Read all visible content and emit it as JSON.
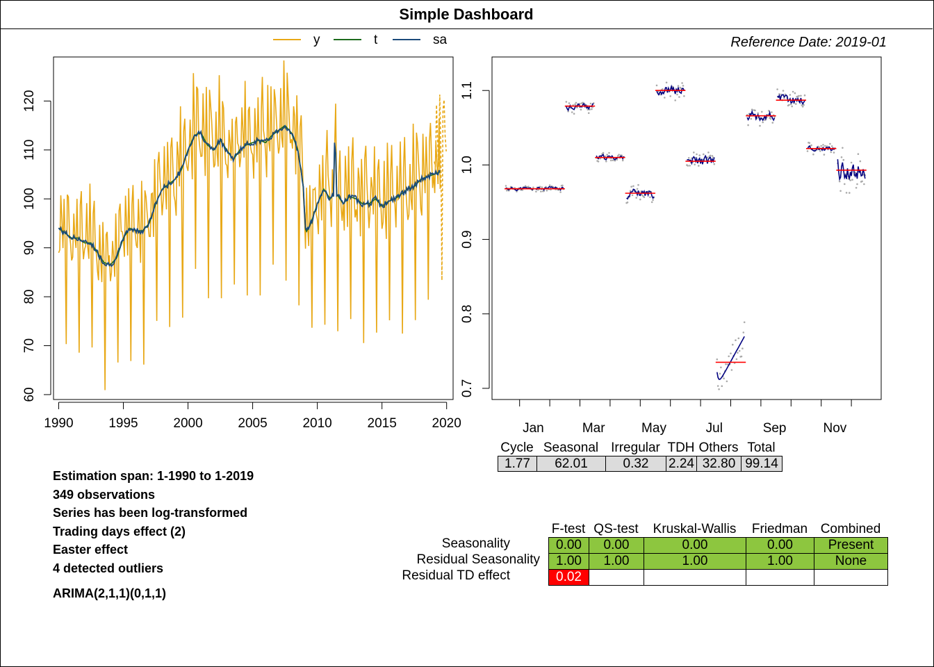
{
  "page_title": "Simple Dashboard",
  "reference_date": "Reference Date: 2019-01",
  "colors": {
    "y": "#E8A816",
    "t": "#1C6B1C",
    "sa": "#1B4A7A",
    "monthly": "#000080",
    "mean": "#FF0000",
    "dots": "#AAAAAA",
    "green": "#8DC63F",
    "red": "#FF0000",
    "gray": "#DCDCDC"
  },
  "chart_data": [
    {
      "type": "line",
      "legend": [
        "y",
        "t",
        "sa"
      ],
      "legend_placement": "top",
      "x_ticks": [
        "1990",
        "1995",
        "2000",
        "2005",
        "2010",
        "2015",
        "2020"
      ],
      "y_ticks": [
        "60",
        "70",
        "80",
        "90",
        "100",
        "110",
        "120"
      ],
      "xlim": [
        1989.6,
        2020.5
      ],
      "ylim": [
        59,
        129
      ],
      "series": [
        {
          "name": "sa",
          "x": [
            1990.0,
            1990.5,
            1991.0,
            1991.5,
            1992.0,
            1992.5,
            1993.0,
            1993.5,
            1994.0,
            1994.5,
            1995.0,
            1995.5,
            1996.0,
            1996.5,
            1997.0,
            1997.5,
            1998.0,
            1998.5,
            1999.0,
            1999.5,
            2000.0,
            2000.5,
            2001.0,
            2001.5,
            2002.0,
            2002.5,
            2003.0,
            2003.5,
            2004.0,
            2004.5,
            2005.0,
            2005.5,
            2006.0,
            2006.5,
            2007.0,
            2007.5,
            2008.0,
            2008.5,
            2008.9,
            2009.1,
            2009.5,
            2010.0,
            2010.5,
            2011.0,
            2011.3,
            2011.35,
            2011.5,
            2012.0,
            2012.5,
            2013.0,
            2013.5,
            2014.0,
            2014.5,
            2015.0,
            2015.5,
            2016.0,
            2016.5,
            2017.0,
            2017.5,
            2018.0,
            2018.5,
            2019.0,
            2019.5
          ],
          "y": [
            94,
            93,
            92,
            92,
            91,
            91,
            89,
            87,
            86.5,
            88,
            92,
            94,
            93.5,
            93.5,
            95,
            99,
            102,
            103,
            104,
            106,
            110,
            113,
            113.5,
            111,
            110,
            112,
            110,
            108,
            110,
            111,
            111.5,
            112,
            111.5,
            113,
            114,
            115,
            113.5,
            110,
            103,
            93,
            95,
            99,
            102,
            100,
            101,
            116,
            101,
            99,
            100.5,
            100,
            99,
            99,
            100,
            98.5,
            99.5,
            100,
            101,
            102,
            102.5,
            104,
            104.5,
            105,
            105.5
          ]
        }
      ]
    },
    {
      "type": "line",
      "title": "",
      "x_ticks": [
        "Jan",
        "Mar",
        "May",
        "Jul",
        "Sep",
        "Nov"
      ],
      "y_ticks": [
        "0.7",
        "0.8",
        "0.9",
        "1.0",
        "1.1"
      ],
      "ylim": [
        0.685,
        1.145
      ],
      "months": [
        "Jan",
        "Feb",
        "Mar",
        "Apr",
        "May",
        "Jun",
        "Jul",
        "Aug",
        "Sep",
        "Oct",
        "Nov",
        "Dec"
      ],
      "month_means": [
        0.968,
        0.968,
        1.079,
        1.01,
        0.962,
        1.1,
        1.005,
        0.735,
        1.066,
        1.087,
        1.022,
        0.993
      ],
      "month_ranges": [
        [
          0.965,
          0.975
        ],
        [
          0.96,
          0.972
        ],
        [
          1.07,
          1.092
        ],
        [
          1.003,
          1.018
        ],
        [
          0.945,
          0.972
        ],
        [
          1.085,
          1.115
        ],
        [
          0.99,
          1.022
        ],
        [
          0.705,
          0.772
        ],
        [
          1.05,
          1.08
        ],
        [
          1.073,
          1.107
        ],
        [
          1.012,
          1.032
        ],
        [
          0.968,
          1.035
        ]
      ]
    }
  ],
  "info_lines": [
    "Estimation span: 1-1990 to 1-2019",
    "349 observations",
    "Series has been log-transformed",
    "Trading days effect (2)",
    "Easter effect",
    "4 detected outliers",
    "ARIMA(2,1,1)(0,1,1)"
  ],
  "variance_table": {
    "headers": [
      "Cycle",
      "Seasonal",
      "Irregular",
      "TDH",
      "Others",
      "Total"
    ],
    "values": [
      "1.77",
      "62.01",
      "0.32",
      "2.24",
      "32.80",
      "99.14"
    ]
  },
  "tests_table": {
    "headers": [
      "F-test",
      "QS-test",
      "Kruskal-Wallis",
      "Friedman",
      "Combined"
    ],
    "rows": [
      {
        "label": "Seasonality",
        "values": [
          "0.00",
          "0.00",
          "0.00",
          "0.00",
          "Present"
        ]
      },
      {
        "label": "Residual Seasonality",
        "values": [
          "1.00",
          "1.00",
          "1.00",
          "1.00",
          "None"
        ]
      },
      {
        "label": "Residual TD effect",
        "values": [
          "0.02",
          "",
          "",
          "",
          ""
        ]
      }
    ]
  }
}
